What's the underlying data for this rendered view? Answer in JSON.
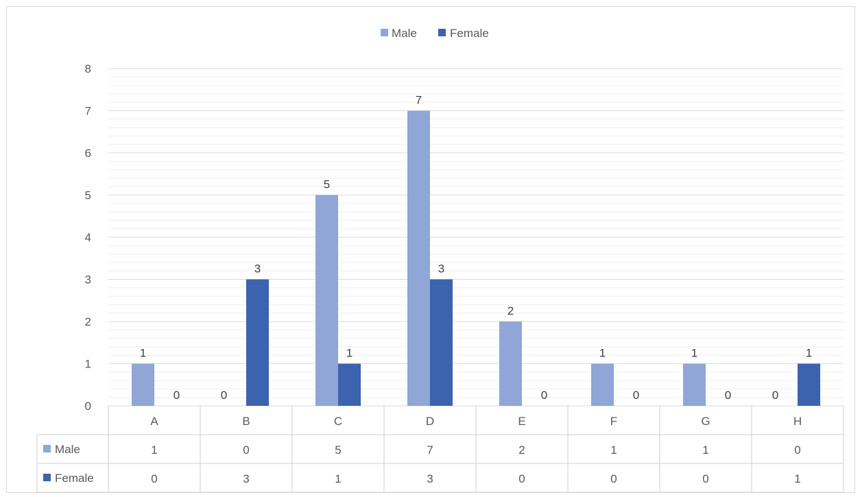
{
  "chart_data": {
    "type": "bar",
    "categories": [
      "A",
      "B",
      "C",
      "D",
      "E",
      "F",
      "G",
      "H"
    ],
    "series": [
      {
        "name": "Male",
        "values": [
          1,
          0,
          5,
          7,
          2,
          1,
          1,
          0
        ],
        "color": "#8FA6D6"
      },
      {
        "name": "Female",
        "values": [
          0,
          3,
          1,
          3,
          0,
          0,
          0,
          1
        ],
        "color": "#3B63AE"
      }
    ],
    "title": "",
    "xlabel": "",
    "ylabel": "",
    "ylim": [
      0,
      8
    ],
    "yticks": [
      0,
      1,
      2,
      3,
      4,
      5,
      6,
      7,
      8
    ],
    "minor_gridlines": true,
    "legend_position": "top-center",
    "data_table": true,
    "data_labels": true
  }
}
